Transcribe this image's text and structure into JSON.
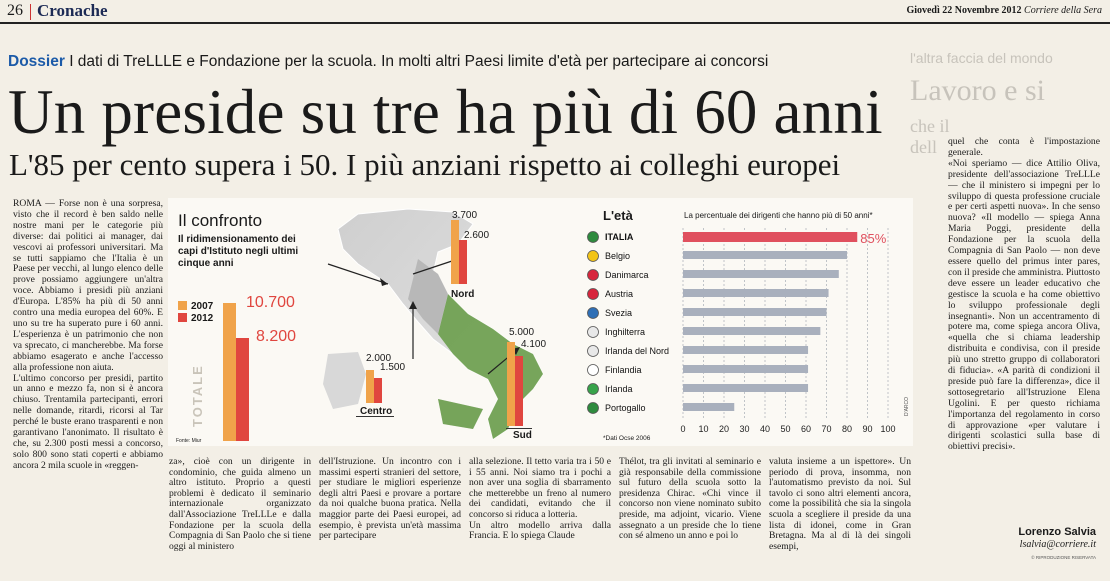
{
  "header": {
    "page_number": "26",
    "section": "Cronache",
    "date_text": "Giovedì 22 Novembre 2012",
    "publication": "Corriere della Sera"
  },
  "dossier": {
    "label": "Dossier",
    "text": "I dati di TreLLLE e Fondazione per la scuola. In molti altri Paesi limite d'età per partecipare ai concorsi"
  },
  "headline": "Un preside su tre ha più di 60 anni",
  "subheadline": "L'85 per cento supera i 50. I più anziani rispetto ai colleghi europei",
  "article": {
    "col1": "ROMA — Forse non è una sorpresa, visto che il record è ben saldo nelle nostre mani per le categorie più diverse: dai politici ai manager, dai vescovi ai professori universitari. Ma se tutti sappiamo che l'Italia è un Paese per vecchi, al lungo elenco delle prove possiamo aggiungere un'altra voce. Abbiamo i presidi più anziani d'Europa. L'85% ha più di 50 anni contro una media europea del 60%. E uno su tre ha superato pure i 60 anni. L'esperienza è un patrimonio che non va sprecato, ci mancherebbe. Ma forse abbiamo esagerato e anche l'accesso alla professione non aiuta.\n    L'ultimo concorso per presidi, partito un anno e mezzo fa, non si è ancora chiuso. Trentamila partecipanti, errori nelle domande, ritardi, ricorsi al Tar perché le buste erano trasparenti e non garantivano l'anonimato. Il risultato è che, su 2.300 posti messi a concorso, solo 800 sono stati coperti e abbiamo ancora 2 mila scuole in «reggen-",
    "col2": "za», cioè con un dirigente in condominio, che guida almeno un altro istituto. Proprio a questi problemi è dedicato il seminario internazionale organizzato dall'Associazione TreLLLe e dalla Fondazione per la scuola della Compagnia di San Paolo che si tiene oggi al ministero",
    "col3": "dell'Istruzione. Un incontro con i massimi esperti stranieri del settore, per studiare le migliori esperienze degli altri Paesi e provare a portare da noi qualche buona pratica. Nella maggior parte dei Paesi europei, ad esempio, è prevista un'età massima per partecipare",
    "col4": "alla selezione. Il tetto varia tra i 50 e i 55 anni. Noi siamo tra i pochi a non aver una soglia di sbarramento che metterebbe un freno al numero dei candidati, evitando che il concorso si riduca a lotteria.\n    Un altro modello arriva dalla Francia. E lo spiega Claude",
    "col5": "Thélot, tra gli invitati al seminario e già responsabile della commissione sul futuro della scuola sotto la presidenza Chirac. «Chi vince il concorso non viene nominato subito preside, ma adjoint, vicario. Viene assegnato a un preside che lo tiene con sé almeno un anno e poi lo",
    "col6": "valuta insieme a un ispettore». Un periodo di prova, insomma, non l'automatismo previsto da noi. Sul tavolo ci sono altri elementi ancora, come la possibilità che sia la singola scuola a scegliere il preside da una lista di idonei, come in Gran Bretagna. Ma al di là dei singoli esempi,",
    "col7": "quel che conta è l'impostazione generale.\n    «Noi speriamo — dice Attilio Oliva, presidente dell'associazione TreLLLe — che il ministero si impegni per lo sviluppo di questa professione cruciale e per certi aspetti nuova». In che senso nuova? «Il modello — spiega Anna Maria Poggi, presidente della Fondazione per la scuola della Compagnia di San Paolo — non deve essere quello del primus inter pares, con il preside che amministra. Piuttosto deve essere un leader educativo che gestisce la scuola e ha come obiettivo lo sviluppo professionale degli insegnanti». Non un accentramento di potere ma, come spiega ancora Oliva, «quella che si chiama leadership distribuita e condivisa, con il preside più uno stretto gruppo di collaboratori di fiducia». «A parità di condizioni il preside può fare la differenza», dice il sottosegretario all'Istruzione Elena Ugolini. E per questo richiama l'importanza del regolamento in corso di approvazione «per valutare i dirigenti scolastici sulla base di obiettivi precisi».",
    "author": "Lorenzo Salvia",
    "email": "lsalvia@corriere.it",
    "copyright": "© RIPRODUZIONE RISERVATA"
  },
  "side_strip": {
    "line1": "l'altra faccia del mondo",
    "line2": "Lavoro e si",
    "line3": "che il",
    "line4": "dell"
  },
  "chart_confronto": {
    "title": "Il confronto",
    "subtitle": "Il ridimensionamento dei capi d'Istituto negli ultimi cinque anni",
    "legend": [
      {
        "year": "2007",
        "color": "#f0a34a"
      },
      {
        "year": "2012",
        "color": "#e0463f"
      }
    ],
    "total_label": "TOTALE",
    "source": "Fonte: Miur",
    "regions": [
      {
        "name": "",
        "v2007": 10700,
        "v2012": 8200,
        "label2007": "10.700",
        "label2012": "8.200"
      },
      {
        "name": "Nord",
        "v2007": 3700,
        "v2012": 2600,
        "label2007": "3.700",
        "label2012": "2.600"
      },
      {
        "name": "Centro",
        "v2007": 2000,
        "v2012": 1500,
        "label2007": "2.000",
        "label2012": "1.500"
      },
      {
        "name": "Sud",
        "v2007": 5000,
        "v2012": 4100,
        "label2007": "5.000",
        "label2012": "4.100"
      }
    ]
  },
  "chart_data": {
    "type": "bar",
    "title": "L'età",
    "subtitle": "La percentuale dei dirigenti che hanno più di 50 anni*",
    "categories": [
      "ITALIA",
      "Belgio",
      "Danimarca",
      "Austria",
      "Svezia",
      "Inghilterra",
      "Irlanda del Nord",
      "Finlandia",
      "Irlanda",
      "Portogallo"
    ],
    "values": [
      85,
      80,
      76,
      71,
      70,
      67,
      61,
      61,
      61,
      25
    ],
    "highlight_label": "85%",
    "xlim": [
      0,
      100
    ],
    "xticks": [
      "0",
      "10",
      "20",
      "30",
      "40",
      "50",
      "60",
      "70",
      "80",
      "90",
      "100"
    ],
    "note": "*Dati Ocse 2006",
    "colors": {
      "highlight": "#e0505e",
      "bar": "#a9b0bd"
    },
    "credit": "D'ARCO"
  }
}
